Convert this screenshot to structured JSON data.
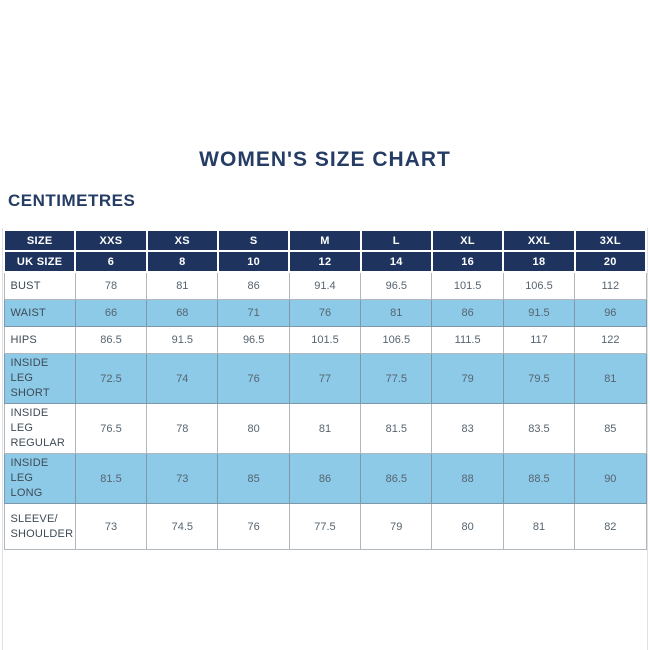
{
  "page": {
    "title": "WOMEN'S SIZE CHART",
    "unit_label": "CENTIMETRES"
  },
  "colors": {
    "navy": "#1e345e",
    "light_blue": "#8ccae8",
    "title_text": "#253c64",
    "label_text": "#3f4a55",
    "value_text": "#57646f"
  },
  "chart_data": {
    "type": "table",
    "title": "WOMEN'S SIZE CHART",
    "unit": "CENTIMETRES",
    "header_rows": [
      {
        "label": "SIZE",
        "values": [
          "XXS",
          "XS",
          "S",
          "M",
          "L",
          "XL",
          "XXL",
          "3XL"
        ]
      },
      {
        "label": "UK SIZE",
        "values": [
          "6",
          "8",
          "10",
          "12",
          "14",
          "16",
          "18",
          "20"
        ]
      }
    ],
    "rows": [
      {
        "label": "BUST",
        "values": [
          "78",
          "81",
          "86",
          "91.4",
          "96.5",
          "101.5",
          "106.5",
          "112"
        ]
      },
      {
        "label": "WAIST",
        "values": [
          "66",
          "68",
          "71",
          "76",
          "81",
          "86",
          "91.5",
          "96"
        ]
      },
      {
        "label": "HIPS",
        "values": [
          "86.5",
          "91.5",
          "96.5",
          "101.5",
          "106.5",
          "111.5",
          "117",
          "122"
        ]
      },
      {
        "label": "INSIDE LEG\nSHORT",
        "values": [
          "72.5",
          "74",
          "76",
          "77",
          "77.5",
          "79",
          "79.5",
          "81"
        ]
      },
      {
        "label": "INSIDE LEG\nREGULAR",
        "values": [
          "76.5",
          "78",
          "80",
          "81",
          "81.5",
          "83",
          "83.5",
          "85"
        ]
      },
      {
        "label": "INSIDE LEG\nLONG",
        "values": [
          "81.5",
          "73",
          "85",
          "86",
          "86.5",
          "88",
          "88.5",
          "90"
        ]
      },
      {
        "label": "SLEEVE/\nSHOULDER",
        "values": [
          "73",
          "74.5",
          "76",
          "77.5",
          "79",
          "80",
          "81",
          "82"
        ]
      }
    ]
  }
}
